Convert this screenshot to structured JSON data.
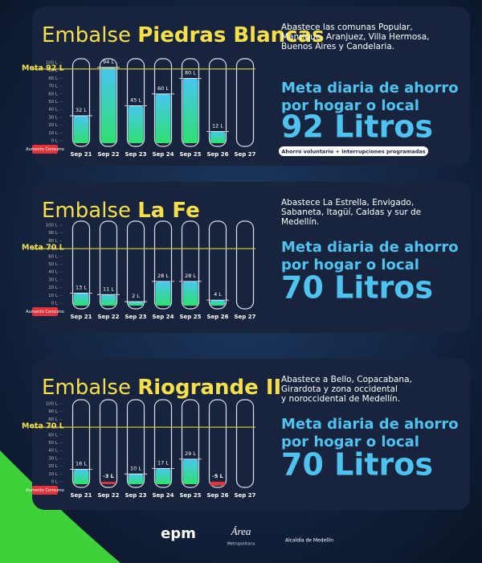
{
  "chart_data": [
    {
      "type": "tube",
      "title": "Embalse",
      "title_bold": "Piedras Blancas",
      "description": [
        "Abastece las comunas Popular,",
        "Manrique, Aranjuez, Villa Hermosa,",
        "Buenos Aires y Candelaria."
      ],
      "goal_text": [
        "Meta diaria de ahorro",
        "por hogar o local"
      ],
      "goal_big": "92 Litros",
      "badge": "Ahorro voluntario + interrupciones programadas",
      "meta": {
        "value": 92,
        "label": "Meta 92 L"
      },
      "negative_label": "Aumento Consumo",
      "categories": [
        "Sep 21",
        "Sep 22",
        "Sep 23",
        "Sep 24",
        "Sep 25",
        "Sep 26",
        "Sep 27"
      ],
      "values": [
        32,
        94,
        45,
        60,
        80,
        12,
        null
      ],
      "value_labels": [
        "32 L",
        "94 L",
        "45 L",
        "60 L",
        "80 L",
        "12 L",
        null
      ],
      "color": "#2fe070",
      "color_top": "#48c6f0",
      "negative_color": "#e0343a",
      "ylim": [
        -10,
        100
      ],
      "yticks": [
        {
          "value": 0,
          "label": "0 L"
        },
        {
          "value": 10,
          "label": "10 L"
        },
        {
          "value": 20,
          "label": "20 L"
        },
        {
          "value": 30,
          "label": "30 L"
        },
        {
          "value": 40,
          "label": "40 L"
        },
        {
          "value": 50,
          "label": "50 L"
        },
        {
          "value": 60,
          "label": "60 L"
        },
        {
          "value": 70,
          "label": "70 L"
        },
        {
          "value": 80,
          "label": "80 L"
        },
        {
          "value": 90,
          "label": "90 L"
        },
        {
          "value": 100,
          "label": "100 L"
        }
      ]
    },
    {
      "type": "tube",
      "title": "Embalse",
      "title_bold": "La Fe",
      "description": [
        "Abastece La Estrella, Envigado,",
        "Sabaneta, Itagüí, Caldas y sur de",
        "Medellín."
      ],
      "goal_text": [
        "Meta diaria de ahorro",
        "por hogar o local"
      ],
      "goal_big": "70 Litros",
      "meta": {
        "value": 70,
        "label": "Meta 70 L"
      },
      "negative_label": "Aumento Consumo",
      "categories": [
        "Sep 21",
        "Sep 22",
        "Sep 23",
        "Sep 24",
        "Sep 25",
        "Sep 26",
        "Sep 27"
      ],
      "values": [
        13,
        11,
        2,
        28,
        28,
        4,
        null
      ],
      "value_labels": [
        "13 L",
        "11 L",
        "2 L",
        "28 L",
        "28 L",
        "4 L",
        null
      ],
      "color": "#2fe070",
      "color_top": "#48c6f0",
      "negative_color": "#e0343a",
      "ylim": [
        -10,
        100
      ],
      "yticks": [
        {
          "value": 0,
          "label": "0 L"
        },
        {
          "value": 10,
          "label": "10 L"
        },
        {
          "value": 20,
          "label": "20 L"
        },
        {
          "value": 30,
          "label": "30 L"
        },
        {
          "value": 40,
          "label": "40 L"
        },
        {
          "value": 50,
          "label": "50 L"
        },
        {
          "value": 60,
          "label": "60 L"
        },
        {
          "value": 70,
          "label": "70 L"
        },
        {
          "value": 80,
          "label": "80 L"
        },
        {
          "value": 90,
          "label": "90 L"
        },
        {
          "value": 100,
          "label": "100 L"
        }
      ]
    },
    {
      "type": "tube",
      "title": "Embalse",
      "title_bold": "Riogrande II",
      "description": [
        "Abastece a Bello, Copacabana,",
        "Girardota y zona occidental",
        "y noroccidental de Medellín."
      ],
      "goal_text": [
        "Meta diaria de ahorro",
        "por hogar o local"
      ],
      "goal_big": "70 Litros",
      "meta": {
        "value": 70,
        "label": "Meta 70 L"
      },
      "negative_label": "Aumento Consumo",
      "categories": [
        "Sep 21",
        "Sep 22",
        "Sep 23",
        "Sep 24",
        "Sep 25",
        "Sep 26",
        "Sep 27"
      ],
      "values": [
        16,
        -3,
        10,
        17,
        29,
        -5,
        null
      ],
      "value_labels": [
        "16 L",
        "-3 L",
        "10 L",
        "17 L",
        "29 L",
        "-5 L",
        null
      ],
      "color": "#2fe070",
      "color_top": "#48c6f0",
      "negative_color": "#e0343a",
      "ylim": [
        -10,
        100
      ],
      "yticks": [
        {
          "value": 0,
          "label": "0 L"
        },
        {
          "value": 10,
          "label": "10 L"
        },
        {
          "value": 20,
          "label": "20 L"
        },
        {
          "value": 30,
          "label": "30 L"
        },
        {
          "value": 40,
          "label": "40 L"
        },
        {
          "value": 50,
          "label": "50 L"
        },
        {
          "value": 60,
          "label": "60 L"
        },
        {
          "value": 70,
          "label": "70 L"
        },
        {
          "value": 80,
          "label": "80 L"
        },
        {
          "value": 90,
          "label": "90 L"
        },
        {
          "value": 100,
          "label": "100 L"
        }
      ]
    }
  ],
  "footer": {
    "logo_1": "epm",
    "logo_2": "Área",
    "logo_2_sub": "Metropolitana",
    "logo_3": "Alcaldía de Medellín"
  }
}
